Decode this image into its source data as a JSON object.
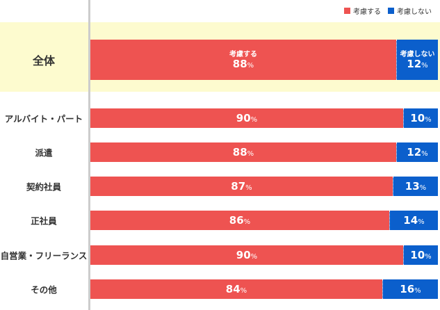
{
  "chart_data": {
    "type": "bar",
    "stacked": true,
    "orientation": "horizontal",
    "unit": "%",
    "categories": [
      "全体",
      "アルバイト・パート",
      "派遣",
      "契約社員",
      "正社員",
      "自営業・フリーランス",
      "その他"
    ],
    "series": [
      {
        "name": "考慮する",
        "values": [
          88,
          90,
          88,
          87,
          86,
          90,
          84
        ],
        "color": "#ee5351"
      },
      {
        "name": "考慮しない",
        "values": [
          12,
          10,
          12,
          13,
          14,
          10,
          16
        ],
        "color": "#0b5fcc"
      }
    ],
    "xlim": [
      0,
      100
    ],
    "legend": "top-right",
    "grid": false,
    "highlight_category": "全体",
    "highlight_color": "#fdfbcf"
  }
}
